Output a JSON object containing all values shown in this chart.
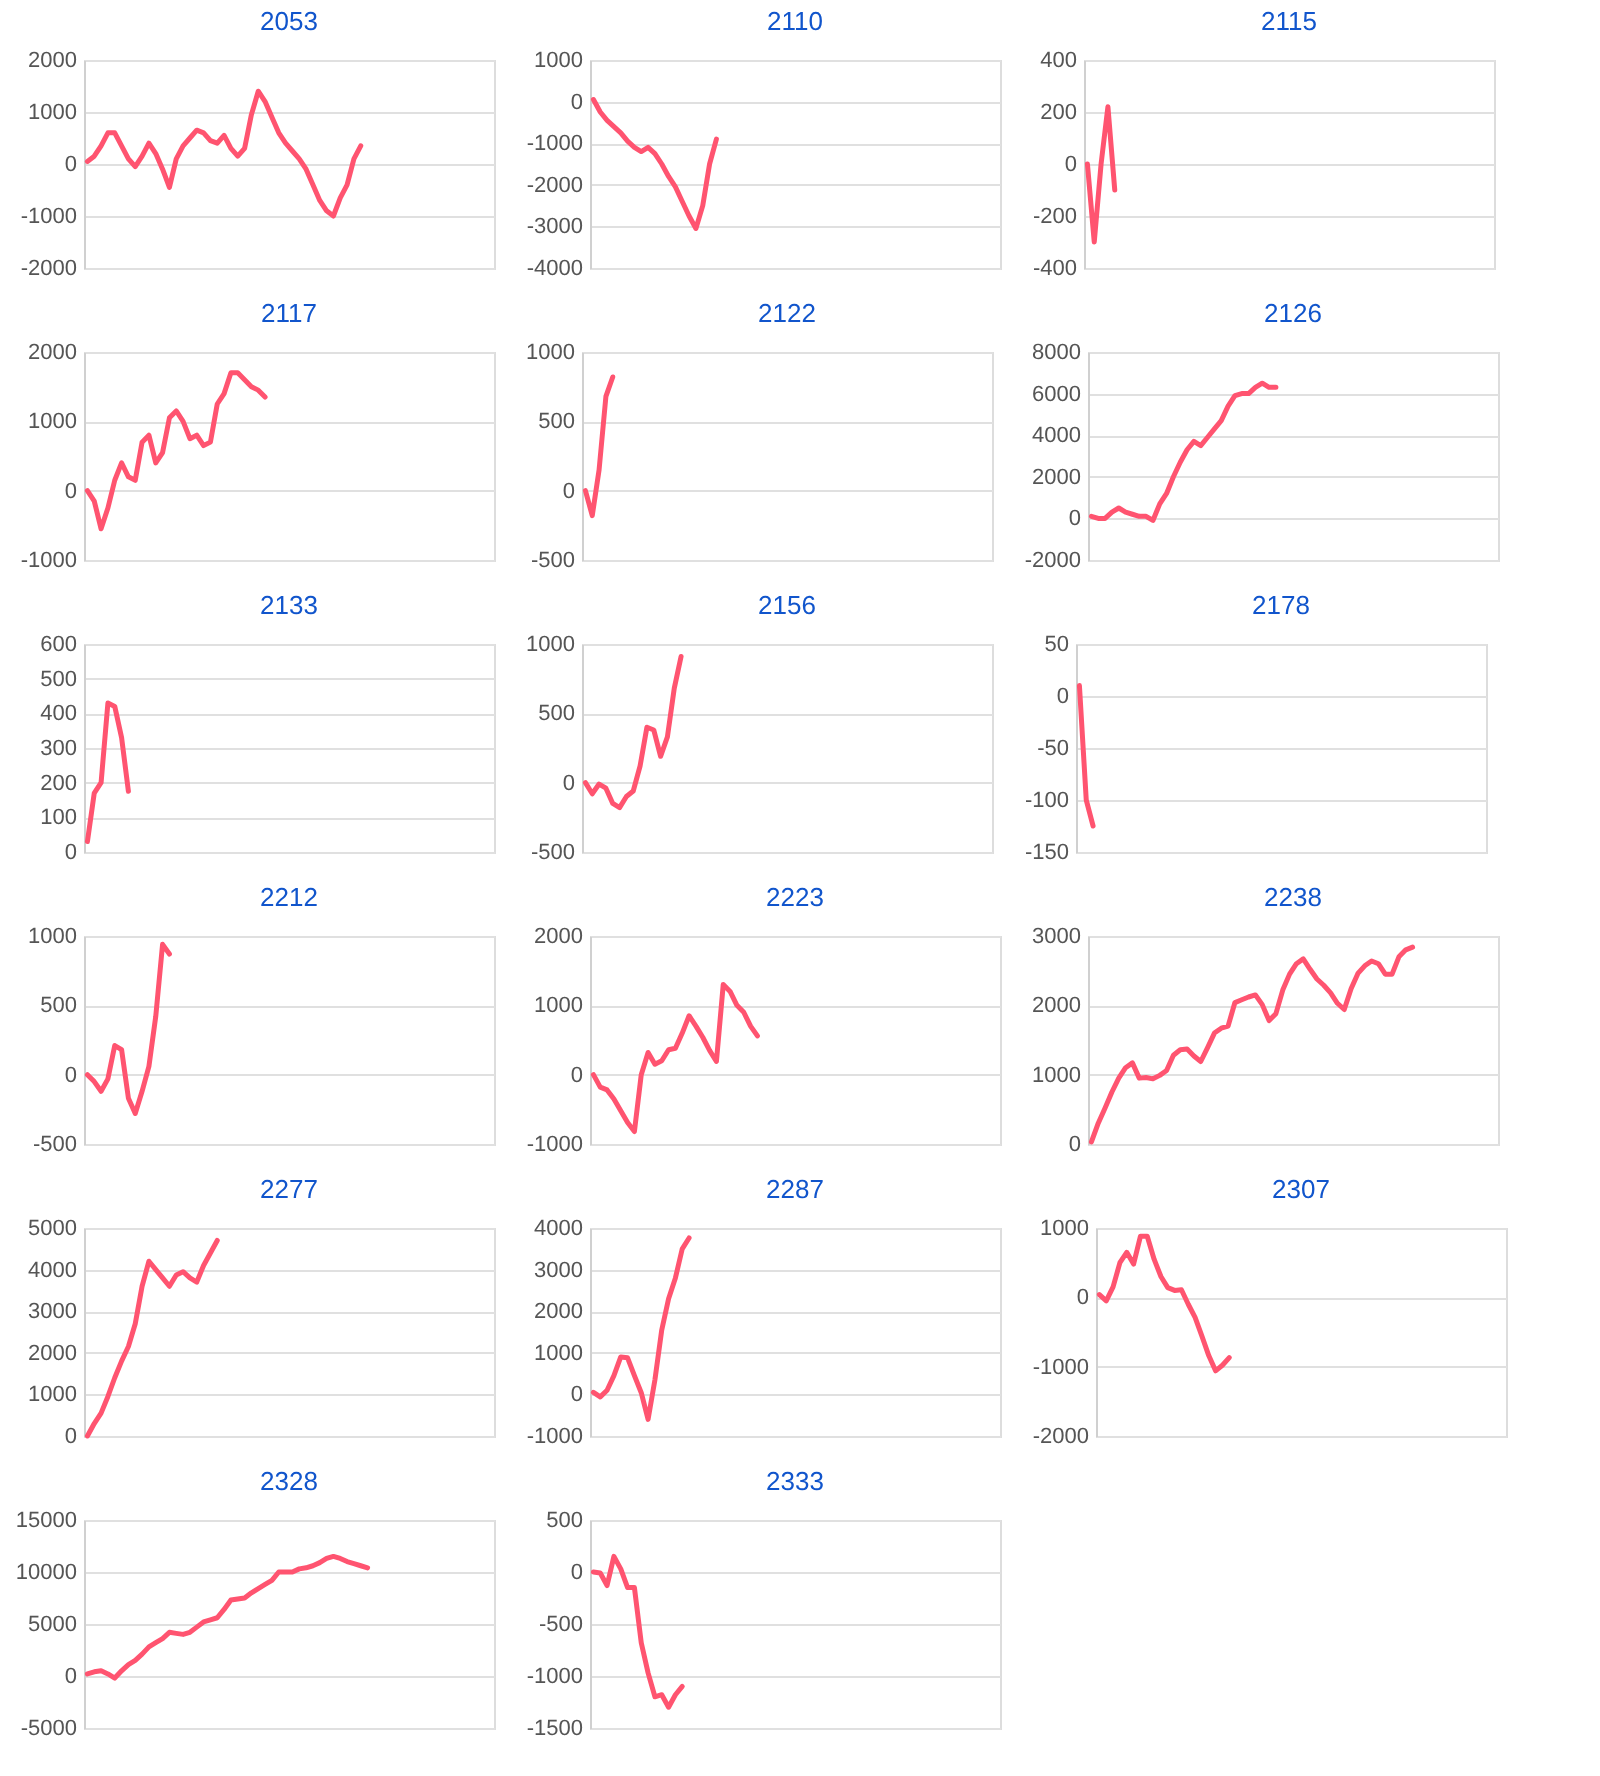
{
  "chart_data": [
    {
      "type": "line",
      "title": "2053",
      "categories": [
        null,
        null,
        null,
        null,
        null,
        null,
        null,
        null,
        null,
        null,
        null,
        null,
        null,
        null,
        null,
        null,
        null,
        null,
        null,
        null,
        null,
        null,
        null,
        null,
        null,
        null,
        null,
        null,
        null,
        null,
        null,
        null,
        null,
        null,
        null,
        null,
        null,
        null,
        null,
        null,
        null,
        null,
        null,
        null,
        null,
        null,
        null,
        null,
        null,
        null,
        null,
        null,
        null,
        null,
        null,
        null,
        null,
        null,
        null,
        null
      ],
      "values": [
        50,
        150,
        350,
        600,
        600,
        350,
        100,
        -50,
        150,
        400,
        200,
        -100,
        -450,
        100,
        350,
        500,
        650,
        600,
        450,
        400,
        550,
        300,
        150,
        300,
        950,
        1400,
        1200,
        900,
        600,
        400,
        250,
        100,
        -100,
        -400,
        -700,
        -900,
        -1000,
        -650,
        -400,
        100,
        350,
        null,
        null,
        null,
        null,
        null,
        null,
        null,
        null,
        null,
        null,
        null,
        null,
        null,
        null,
        null,
        null,
        null,
        null,
        null
      ],
      "color": "#ff5470",
      "ylim": [
        -2000,
        2000
      ],
      "yticks": [
        -2000,
        -1000,
        0,
        1000,
        2000
      ],
      "grid": "y",
      "tick_labels": "y"
    },
    {
      "type": "line",
      "title": "2110",
      "categories": [
        null,
        null,
        null,
        null,
        null,
        null,
        null,
        null,
        null,
        null,
        null,
        null,
        null,
        null,
        null,
        null,
        null,
        null,
        null,
        null,
        null,
        null,
        null,
        null,
        null,
        null,
        null,
        null,
        null,
        null,
        null,
        null,
        null,
        null,
        null,
        null,
        null,
        null,
        null,
        null,
        null,
        null,
        null,
        null,
        null,
        null,
        null,
        null,
        null,
        null,
        null,
        null,
        null,
        null,
        null,
        null,
        null,
        null,
        null,
        null
      ],
      "values": [
        50,
        -250,
        -450,
        -600,
        -750,
        -950,
        -1100,
        -1200,
        -1100,
        -1250,
        -1500,
        -1800,
        -2050,
        -2400,
        -2750,
        -3050,
        -2500,
        -1500,
        -900,
        null,
        null,
        null,
        null,
        null,
        null,
        null,
        null,
        null,
        null,
        null,
        null,
        null,
        null,
        null,
        null,
        null,
        null,
        null,
        null,
        null,
        null,
        null,
        null,
        null,
        null,
        null,
        null,
        null,
        null,
        null,
        null,
        null,
        null,
        null,
        null,
        null,
        null,
        null,
        null,
        null
      ],
      "color": "#ff5470",
      "ylim": [
        -4000,
        1000
      ],
      "yticks": [
        -4000,
        -3000,
        -2000,
        -1000,
        0,
        1000
      ],
      "grid": "y",
      "tick_labels": "y"
    },
    {
      "type": "line",
      "title": "2115",
      "categories": [
        null,
        null,
        null,
        null,
        null,
        null,
        null,
        null,
        null,
        null,
        null,
        null,
        null,
        null,
        null,
        null,
        null,
        null,
        null,
        null,
        null,
        null,
        null,
        null,
        null,
        null,
        null,
        null,
        null,
        null,
        null,
        null,
        null,
        null,
        null,
        null,
        null,
        null,
        null,
        null,
        null,
        null,
        null,
        null,
        null,
        null,
        null,
        null,
        null,
        null,
        null,
        null,
        null,
        null,
        null,
        null,
        null,
        null,
        null,
        null
      ],
      "values": [
        0,
        -300,
        0,
        220,
        -100,
        null,
        null,
        null,
        null,
        null,
        null,
        null,
        null,
        null,
        null,
        null,
        null,
        null,
        null,
        null,
        null,
        null,
        null,
        null,
        null,
        null,
        null,
        null,
        null,
        null,
        null,
        null,
        null,
        null,
        null,
        null,
        null,
        null,
        null,
        null,
        null,
        null,
        null,
        null,
        null,
        null,
        null,
        null,
        null,
        null,
        null,
        null,
        null,
        null,
        null,
        null,
        null,
        null,
        null,
        null
      ],
      "color": "#ff5470",
      "ylim": [
        -400,
        400
      ],
      "yticks": [
        -400,
        -200,
        0,
        200,
        400
      ],
      "grid": "y",
      "tick_labels": "y"
    },
    {
      "type": "line",
      "title": "2117",
      "categories": [
        null,
        null,
        null,
        null,
        null,
        null,
        null,
        null,
        null,
        null,
        null,
        null,
        null,
        null,
        null,
        null,
        null,
        null,
        null,
        null,
        null,
        null,
        null,
        null,
        null,
        null,
        null,
        null,
        null,
        null,
        null,
        null,
        null,
        null,
        null,
        null,
        null,
        null,
        null,
        null,
        null,
        null,
        null,
        null,
        null,
        null,
        null,
        null,
        null,
        null,
        null,
        null,
        null,
        null,
        null,
        null,
        null,
        null,
        null,
        null
      ],
      "values": [
        0,
        -150,
        -550,
        -250,
        150,
        400,
        200,
        150,
        700,
        800,
        400,
        550,
        1050,
        1150,
        1000,
        750,
        800,
        650,
        700,
        1250,
        1400,
        1700,
        1700,
        1600,
        1500,
        1450,
        1350,
        null,
        null,
        null,
        null,
        null,
        null,
        null,
        null,
        null,
        null,
        null,
        null,
        null,
        null,
        null,
        null,
        null,
        null,
        null,
        null,
        null,
        null,
        null,
        null,
        null,
        null,
        null,
        null,
        null,
        null,
        null,
        null,
        null
      ],
      "color": "#ff5470",
      "ylim": [
        -1000,
        2000
      ],
      "yticks": [
        -1000,
        0,
        1000,
        2000
      ],
      "grid": "y",
      "tick_labels": "y"
    },
    {
      "type": "line",
      "title": "2122",
      "categories": [
        null,
        null,
        null,
        null,
        null,
        null,
        null,
        null,
        null,
        null,
        null,
        null,
        null,
        null,
        null,
        null,
        null,
        null,
        null,
        null,
        null,
        null,
        null,
        null,
        null,
        null,
        null,
        null,
        null,
        null,
        null,
        null,
        null,
        null,
        null,
        null,
        null,
        null,
        null,
        null,
        null,
        null,
        null,
        null,
        null,
        null,
        null,
        null,
        null,
        null,
        null,
        null,
        null,
        null,
        null,
        null,
        null,
        null,
        null,
        null
      ],
      "values": [
        0,
        -180,
        150,
        680,
        820,
        null,
        null,
        null,
        null,
        null,
        null,
        null,
        null,
        null,
        null,
        null,
        null,
        null,
        null,
        null,
        null,
        null,
        null,
        null,
        null,
        null,
        null,
        null,
        null,
        null,
        null,
        null,
        null,
        null,
        null,
        null,
        null,
        null,
        null,
        null,
        null,
        null,
        null,
        null,
        null,
        null,
        null,
        null,
        null,
        null,
        null,
        null,
        null,
        null,
        null,
        null,
        null,
        null,
        null,
        null
      ],
      "color": "#ff5470",
      "ylim": [
        -500,
        1000
      ],
      "yticks": [
        -500,
        0,
        500,
        1000
      ],
      "grid": "y",
      "tick_labels": "y"
    },
    {
      "type": "line",
      "title": "2126",
      "categories": [
        null,
        null,
        null,
        null,
        null,
        null,
        null,
        null,
        null,
        null,
        null,
        null,
        null,
        null,
        null,
        null,
        null,
        null,
        null,
        null,
        null,
        null,
        null,
        null,
        null,
        null,
        null,
        null,
        null,
        null,
        null,
        null,
        null,
        null,
        null,
        null,
        null,
        null,
        null,
        null,
        null,
        null,
        null,
        null,
        null,
        null,
        null,
        null,
        null,
        null,
        null,
        null,
        null,
        null,
        null,
        null,
        null,
        null,
        null,
        null
      ],
      "values": [
        100,
        0,
        0,
        300,
        500,
        300,
        200,
        100,
        100,
        -100,
        700,
        1200,
        2000,
        2700,
        3300,
        3700,
        3500,
        3900,
        4300,
        4700,
        5400,
        5900,
        6000,
        6000,
        6300,
        6500,
        6300,
        6300,
        null,
        null,
        null,
        null,
        null,
        null,
        null,
        null,
        null,
        null,
        null,
        null,
        null,
        null,
        null,
        null,
        null,
        null,
        null,
        null,
        null,
        null,
        null,
        null,
        null,
        null,
        null,
        null,
        null,
        null,
        null,
        null
      ],
      "color": "#ff5470",
      "ylim": [
        -2000,
        8000
      ],
      "yticks": [
        -2000,
        0,
        2000,
        4000,
        6000,
        8000
      ],
      "grid": "y",
      "tick_labels": "y"
    },
    {
      "type": "line",
      "title": "2133",
      "categories": [
        null,
        null,
        null,
        null,
        null,
        null,
        null,
        null,
        null,
        null,
        null,
        null,
        null,
        null,
        null,
        null,
        null,
        null,
        null,
        null,
        null,
        null,
        null,
        null,
        null,
        null,
        null,
        null,
        null,
        null,
        null,
        null,
        null,
        null,
        null,
        null,
        null,
        null,
        null,
        null,
        null,
        null,
        null,
        null,
        null,
        null,
        null,
        null,
        null,
        null,
        null,
        null,
        null,
        null,
        null,
        null,
        null,
        null,
        null,
        null
      ],
      "values": [
        30,
        170,
        200,
        430,
        420,
        330,
        175,
        null,
        null,
        null,
        null,
        null,
        null,
        null,
        null,
        null,
        null,
        null,
        null,
        null,
        null,
        null,
        null,
        null,
        null,
        null,
        null,
        null,
        null,
        null,
        null,
        null,
        null,
        null,
        null,
        null,
        null,
        null,
        null,
        null,
        null,
        null,
        null,
        null,
        null,
        null,
        null,
        null,
        null,
        null,
        null,
        null,
        null,
        null,
        null,
        null,
        null,
        null,
        null,
        null
      ],
      "color": "#ff5470",
      "ylim": [
        0,
        600
      ],
      "yticks": [
        0,
        100,
        200,
        300,
        400,
        500,
        600
      ],
      "grid": "y",
      "tick_labels": "y"
    },
    {
      "type": "line",
      "title": "2156",
      "categories": [
        null,
        null,
        null,
        null,
        null,
        null,
        null,
        null,
        null,
        null,
        null,
        null,
        null,
        null,
        null,
        null,
        null,
        null,
        null,
        null,
        null,
        null,
        null,
        null,
        null,
        null,
        null,
        null,
        null,
        null,
        null,
        null,
        null,
        null,
        null,
        null,
        null,
        null,
        null,
        null,
        null,
        null,
        null,
        null,
        null,
        null,
        null,
        null,
        null,
        null,
        null,
        null,
        null,
        null,
        null,
        null,
        null,
        null,
        null,
        null
      ],
      "values": [
        0,
        -80,
        -10,
        -40,
        -150,
        -180,
        -100,
        -60,
        120,
        400,
        380,
        190,
        330,
        680,
        910,
        null,
        null,
        null,
        null,
        null,
        null,
        null,
        null,
        null,
        null,
        null,
        null,
        null,
        null,
        null,
        null,
        null,
        null,
        null,
        null,
        null,
        null,
        null,
        null,
        null,
        null,
        null,
        null,
        null,
        null,
        null,
        null,
        null,
        null,
        null,
        null,
        null,
        null,
        null,
        null,
        null,
        null,
        null,
        null,
        null
      ],
      "color": "#ff5470",
      "ylim": [
        -500,
        1000
      ],
      "yticks": [
        -500,
        0,
        500,
        1000
      ],
      "grid": "y",
      "tick_labels": "y"
    },
    {
      "type": "line",
      "title": "2178",
      "categories": [
        null,
        null,
        null,
        null,
        null,
        null,
        null,
        null,
        null,
        null,
        null,
        null,
        null,
        null,
        null,
        null,
        null,
        null,
        null,
        null,
        null,
        null,
        null,
        null,
        null,
        null,
        null,
        null,
        null,
        null,
        null,
        null,
        null,
        null,
        null,
        null,
        null,
        null,
        null,
        null,
        null,
        null,
        null,
        null,
        null,
        null,
        null,
        null,
        null,
        null,
        null,
        null,
        null,
        null,
        null,
        null,
        null,
        null,
        null,
        null
      ],
      "values": [
        10,
        -100,
        -125,
        null,
        null,
        null,
        null,
        null,
        null,
        null,
        null,
        null,
        null,
        null,
        null,
        null,
        null,
        null,
        null,
        null,
        null,
        null,
        null,
        null,
        null,
        null,
        null,
        null,
        null,
        null,
        null,
        null,
        null,
        null,
        null,
        null,
        null,
        null,
        null,
        null,
        null,
        null,
        null,
        null,
        null,
        null,
        null,
        null,
        null,
        null,
        null,
        null,
        null,
        null,
        null,
        null,
        null,
        null,
        null,
        null
      ],
      "color": "#ff5470",
      "ylim": [
        -150,
        50
      ],
      "yticks": [
        -150,
        -100,
        -50,
        0,
        50
      ],
      "grid": "y",
      "tick_labels": "y"
    },
    {
      "type": "line",
      "title": "2212",
      "categories": [
        null,
        null,
        null,
        null,
        null,
        null,
        null,
        null,
        null,
        null,
        null,
        null,
        null,
        null,
        null,
        null,
        null,
        null,
        null,
        null,
        null,
        null,
        null,
        null,
        null,
        null,
        null,
        null,
        null,
        null,
        null,
        null,
        null,
        null,
        null,
        null,
        null,
        null,
        null,
        null,
        null,
        null,
        null,
        null,
        null,
        null,
        null,
        null,
        null,
        null,
        null,
        null,
        null,
        null,
        null,
        null,
        null,
        null,
        null,
        null
      ],
      "values": [
        0,
        -50,
        -120,
        -30,
        210,
        180,
        -170,
        -280,
        -120,
        60,
        420,
        940,
        870,
        null,
        null,
        null,
        null,
        null,
        null,
        null,
        null,
        null,
        null,
        null,
        null,
        null,
        null,
        null,
        null,
        null,
        null,
        null,
        null,
        null,
        null,
        null,
        null,
        null,
        null,
        null,
        null,
        null,
        null,
        null,
        null,
        null,
        null,
        null,
        null,
        null,
        null,
        null,
        null,
        null,
        null,
        null,
        null,
        null,
        null,
        null
      ],
      "color": "#ff5470",
      "ylim": [
        -500,
        1000
      ],
      "yticks": [
        -500,
        0,
        500,
        1000
      ],
      "grid": "y",
      "tick_labels": "y"
    },
    {
      "type": "line",
      "title": "2223",
      "categories": [
        null,
        null,
        null,
        null,
        null,
        null,
        null,
        null,
        null,
        null,
        null,
        null,
        null,
        null,
        null,
        null,
        null,
        null,
        null,
        null,
        null,
        null,
        null,
        null,
        null,
        null,
        null,
        null,
        null,
        null,
        null,
        null,
        null,
        null,
        null,
        null,
        null,
        null,
        null,
        null,
        null,
        null,
        null,
        null,
        null,
        null,
        null,
        null,
        null,
        null,
        null,
        null,
        null,
        null,
        null,
        null,
        null,
        null,
        null,
        null
      ],
      "values": [
        0,
        -180,
        -220,
        -350,
        -520,
        -690,
        -820,
        0,
        320,
        150,
        200,
        360,
        380,
        600,
        850,
        700,
        540,
        350,
        190,
        1300,
        1200,
        1000,
        900,
        700,
        560,
        null,
        null,
        null,
        null,
        null,
        null,
        null,
        null,
        null,
        null,
        null,
        null,
        null,
        null,
        null,
        null,
        null,
        null,
        null,
        null,
        null,
        null,
        null,
        null,
        null,
        null,
        null,
        null,
        null,
        null,
        null,
        null,
        null,
        null,
        null
      ],
      "color": "#ff5470",
      "ylim": [
        -1000,
        2000
      ],
      "yticks": [
        -1000,
        0,
        1000,
        2000
      ],
      "grid": "y",
      "tick_labels": "y"
    },
    {
      "type": "line",
      "title": "2238",
      "categories": [
        null,
        null,
        null,
        null,
        null,
        null,
        null,
        null,
        null,
        null,
        null,
        null,
        null,
        null,
        null,
        null,
        null,
        null,
        null,
        null,
        null,
        null,
        null,
        null,
        null,
        null,
        null,
        null,
        null,
        null,
        null,
        null,
        null,
        null,
        null,
        null,
        null,
        null,
        null,
        null,
        null,
        null,
        null,
        null,
        null,
        null,
        null,
        null,
        null,
        null,
        null,
        null,
        null,
        null,
        null,
        null,
        null,
        null,
        null,
        null
      ],
      "values": [
        30,
        300,
        520,
        750,
        950,
        1100,
        1170,
        950,
        960,
        940,
        990,
        1060,
        1280,
        1360,
        1370,
        1270,
        1190,
        1390,
        1600,
        1670,
        1700,
        2040,
        2080,
        2120,
        2150,
        2010,
        1780,
        1880,
        2220,
        2450,
        2600,
        2670,
        2520,
        2380,
        2290,
        2180,
        2030,
        1940,
        2240,
        2460,
        2570,
        2640,
        2600,
        2450,
        2450,
        2700,
        2800,
        2840,
        null,
        null,
        null,
        null,
        null,
        null,
        null,
        null,
        null,
        null,
        null,
        null
      ],
      "color": "#ff5470",
      "ylim": [
        0,
        3000
      ],
      "yticks": [
        0,
        1000,
        2000,
        3000
      ],
      "grid": "y",
      "tick_labels": "y"
    },
    {
      "type": "line",
      "title": "2277",
      "categories": [
        null,
        null,
        null,
        null,
        null,
        null,
        null,
        null,
        null,
        null,
        null,
        null,
        null,
        null,
        null,
        null,
        null,
        null,
        null,
        null,
        null,
        null,
        null,
        null,
        null,
        null,
        null,
        null,
        null,
        null,
        null,
        null,
        null,
        null,
        null,
        null,
        null,
        null,
        null,
        null,
        null,
        null,
        null,
        null,
        null,
        null,
        null,
        null,
        null,
        null,
        null,
        null,
        null,
        null,
        null,
        null,
        null,
        null,
        null,
        null
      ],
      "values": [
        0,
        300,
        550,
        950,
        1400,
        1800,
        2150,
        2700,
        3600,
        4200,
        4000,
        3800,
        3600,
        3870,
        3950,
        3800,
        3700,
        4100,
        4400,
        4700,
        null,
        null,
        null,
        null,
        null,
        null,
        null,
        null,
        null,
        null,
        null,
        null,
        null,
        null,
        null,
        null,
        null,
        null,
        null,
        null,
        null,
        null,
        null,
        null,
        null,
        null,
        null,
        null,
        null,
        null,
        null,
        null,
        null,
        null,
        null,
        null,
        null,
        null,
        null,
        null
      ],
      "color": "#ff5470",
      "ylim": [
        0,
        5000
      ],
      "yticks": [
        0,
        1000,
        2000,
        3000,
        4000,
        5000
      ],
      "grid": "y",
      "tick_labels": "y"
    },
    {
      "type": "line",
      "title": "2287",
      "categories": [
        null,
        null,
        null,
        null,
        null,
        null,
        null,
        null,
        null,
        null,
        null,
        null,
        null,
        null,
        null,
        null,
        null,
        null,
        null,
        null,
        null,
        null,
        null,
        null,
        null,
        null,
        null,
        null,
        null,
        null,
        null,
        null,
        null,
        null,
        null,
        null,
        null,
        null,
        null,
        null,
        null,
        null,
        null,
        null,
        null,
        null,
        null,
        null,
        null,
        null,
        null,
        null,
        null,
        null,
        null,
        null,
        null,
        null,
        null,
        null
      ],
      "values": [
        50,
        -60,
        100,
        450,
        900,
        880,
        450,
        40,
        -600,
        350,
        1550,
        2300,
        2800,
        3500,
        3760,
        null,
        null,
        null,
        null,
        null,
        null,
        null,
        null,
        null,
        null,
        null,
        null,
        null,
        null,
        null,
        null,
        null,
        null,
        null,
        null,
        null,
        null,
        null,
        null,
        null,
        null,
        null,
        null,
        null,
        null,
        null,
        null,
        null,
        null,
        null,
        null,
        null,
        null,
        null,
        null,
        null,
        null,
        null,
        null,
        null
      ],
      "color": "#ff5470",
      "ylim": [
        -1000,
        4000
      ],
      "yticks": [
        -1000,
        0,
        1000,
        2000,
        3000,
        4000
      ],
      "grid": "y",
      "tick_labels": "y"
    },
    {
      "type": "line",
      "title": "2307",
      "categories": [
        null,
        null,
        null,
        null,
        null,
        null,
        null,
        null,
        null,
        null,
        null,
        null,
        null,
        null,
        null,
        null,
        null,
        null,
        null,
        null,
        null,
        null,
        null,
        null,
        null,
        null,
        null,
        null,
        null,
        null,
        null,
        null,
        null,
        null,
        null,
        null,
        null,
        null,
        null,
        null,
        null,
        null,
        null,
        null,
        null,
        null,
        null,
        null,
        null,
        null,
        null,
        null,
        null,
        null,
        null,
        null,
        null,
        null,
        null,
        null
      ],
      "values": [
        40,
        -50,
        150,
        500,
        650,
        480,
        880,
        880,
        550,
        300,
        140,
        100,
        110,
        -100,
        -290,
        -560,
        -840,
        -1060,
        -980,
        -870,
        null,
        null,
        null,
        null,
        null,
        null,
        null,
        null,
        null,
        null,
        null,
        null,
        null,
        null,
        null,
        null,
        null,
        null,
        null,
        null,
        null,
        null,
        null,
        null,
        null,
        null,
        null,
        null,
        null,
        null,
        null,
        null,
        null,
        null,
        null,
        null,
        null,
        null,
        null,
        null
      ],
      "color": "#ff5470",
      "ylim": [
        -2000,
        1000
      ],
      "yticks": [
        -2000,
        -1000,
        0,
        1000
      ],
      "grid": "y",
      "tick_labels": "y"
    },
    {
      "type": "line",
      "title": "2328",
      "categories": [
        null,
        null,
        null,
        null,
        null,
        null,
        null,
        null,
        null,
        null,
        null,
        null,
        null,
        null,
        null,
        null,
        null,
        null,
        null,
        null,
        null,
        null,
        null,
        null,
        null,
        null,
        null,
        null,
        null,
        null,
        null,
        null,
        null,
        null,
        null,
        null,
        null,
        null,
        null,
        null,
        null,
        null,
        null,
        null,
        null,
        null,
        null,
        null,
        null,
        null,
        null,
        null,
        null,
        null,
        null,
        null,
        null,
        null,
        null,
        null
      ],
      "values": [
        200,
        400,
        500,
        200,
        -200,
        500,
        1100,
        1500,
        2100,
        2800,
        3200,
        3600,
        4200,
        4100,
        4000,
        4200,
        4700,
        5200,
        5400,
        5600,
        6400,
        7300,
        7400,
        7500,
        8000,
        8400,
        8800,
        9200,
        10000,
        10000,
        10000,
        10300,
        10400,
        10600,
        10900,
        11300,
        11500,
        11300,
        11000,
        10800,
        10600,
        10400,
        null,
        null,
        null,
        null,
        null,
        null,
        null,
        null,
        null,
        null,
        null,
        null,
        null,
        null,
        null,
        null,
        null,
        null
      ],
      "color": "#ff5470",
      "ylim": [
        -5000,
        15000
      ],
      "yticks": [
        -5000,
        0,
        5000,
        10000,
        15000
      ],
      "grid": "y",
      "tick_labels": "y"
    },
    {
      "type": "line",
      "title": "2333",
      "categories": [
        null,
        null,
        null,
        null,
        null,
        null,
        null,
        null,
        null,
        null,
        null,
        null,
        null,
        null,
        null,
        null,
        null,
        null,
        null,
        null,
        null,
        null,
        null,
        null,
        null,
        null,
        null,
        null,
        null,
        null,
        null,
        null,
        null,
        null,
        null,
        null,
        null,
        null,
        null,
        null,
        null,
        null,
        null,
        null,
        null,
        null,
        null,
        null,
        null,
        null,
        null,
        null,
        null,
        null,
        null,
        null,
        null,
        null,
        null,
        null
      ],
      "values": [
        0,
        -10,
        -130,
        150,
        30,
        -150,
        -150,
        -680,
        -970,
        -1200,
        -1180,
        -1300,
        -1180,
        -1100,
        null,
        null,
        null,
        null,
        null,
        null,
        null,
        null,
        null,
        null,
        null,
        null,
        null,
        null,
        null,
        null,
        null,
        null,
        null,
        null,
        null,
        null,
        null,
        null,
        null,
        null,
        null,
        null,
        null,
        null,
        null,
        null,
        null,
        null,
        null,
        null,
        null,
        null,
        null,
        null,
        null,
        null,
        null,
        null,
        null,
        null
      ],
      "color": "#ff5470",
      "ylim": [
        -1500,
        500
      ],
      "yticks": [
        -1500,
        -1000,
        -500,
        0,
        500
      ],
      "grid": "y",
      "tick_labels": "y"
    }
  ]
}
